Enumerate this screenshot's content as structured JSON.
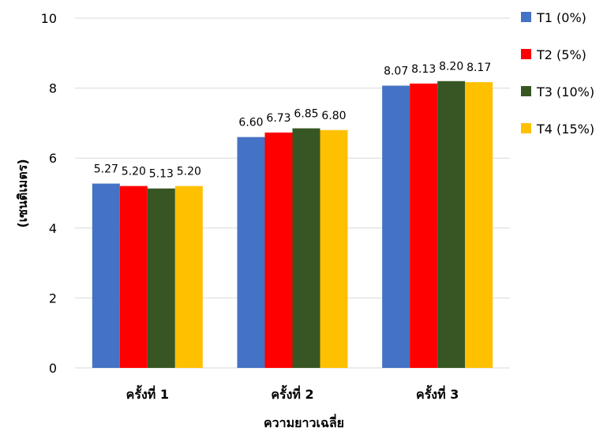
{
  "chart_data": {
    "type": "bar",
    "title": "",
    "xlabel": "ความยาวเฉลี่ย",
    "ylabel": "(เซนติเมตร)",
    "ylim": [
      0,
      10
    ],
    "yticks": [
      "0",
      "2",
      "4",
      "6",
      "8",
      "10"
    ],
    "grid": true,
    "legend_position": "top-right",
    "categories": [
      "ครั้งที่ 1",
      "ครั้งที่ 2",
      "ครั้งที่ 3"
    ],
    "series": [
      {
        "name": "T1 (0%)",
        "color": "#4472C4",
        "values": [
          5.27,
          6.6,
          8.07
        ],
        "labels": [
          "5.27",
          "6.60",
          "8.07"
        ]
      },
      {
        "name": "T2 (5%)",
        "color": "#FF0000",
        "values": [
          5.2,
          6.73,
          8.13
        ],
        "labels": [
          "5.20",
          "6.73",
          "8.13"
        ]
      },
      {
        "name": "T3 (10%)",
        "color": "#375623",
        "values": [
          5.13,
          6.85,
          8.2
        ],
        "labels": [
          "5.13",
          "6.85",
          "8.20"
        ]
      },
      {
        "name": "T4 (15%)",
        "color": "#FFC000",
        "values": [
          5.2,
          6.8,
          8.17
        ],
        "labels": [
          "5.20",
          "6.80",
          "8.17"
        ]
      }
    ]
  }
}
